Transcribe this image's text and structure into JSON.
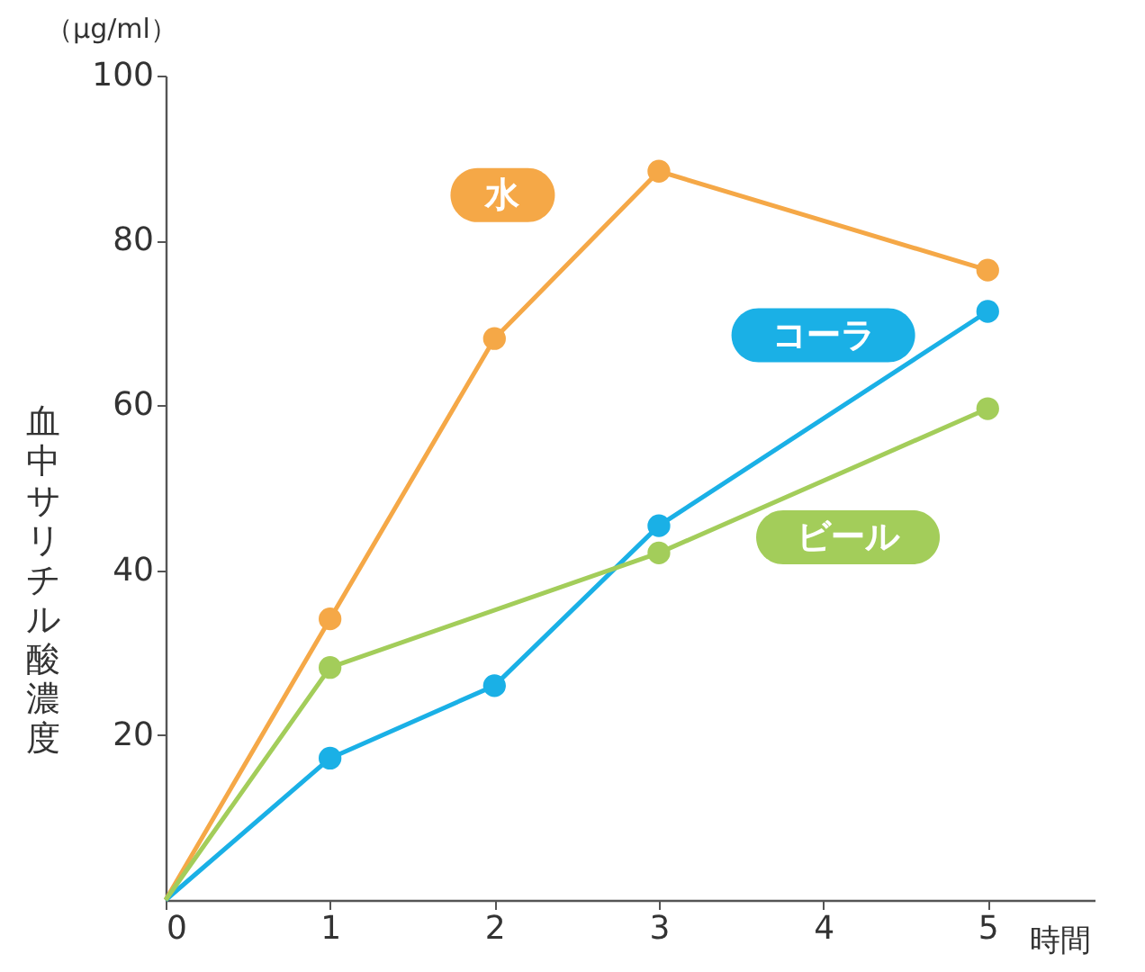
{
  "chart_data": {
    "type": "line",
    "xlabel": "時間",
    "ylabel": "血中サリチル酸濃度",
    "annotations": [
      "（µg/ml）"
    ],
    "x": [
      0,
      1,
      2,
      3,
      5
    ],
    "series": [
      {
        "name": "水",
        "color": "#f5a847",
        "values": [
          0,
          34.1,
          68.1,
          88.4,
          76.4
        ]
      },
      {
        "name": "コーラ",
        "color": "#1ab0e6",
        "values": [
          0,
          17.2,
          26,
          45.4,
          71.4
        ]
      },
      {
        "name": "ビール",
        "color": "#a3cd5a",
        "values": [
          0,
          28.2,
          null,
          42.1,
          59.6
        ]
      }
    ],
    "xlim": [
      0,
      5.65
    ],
    "ylim": [
      0,
      100
    ],
    "xticks": [
      0,
      1,
      2,
      3,
      4,
      5
    ],
    "yticks": [
      20,
      40,
      60,
      80,
      100
    ],
    "marker": "circle",
    "line_style": "solid"
  }
}
